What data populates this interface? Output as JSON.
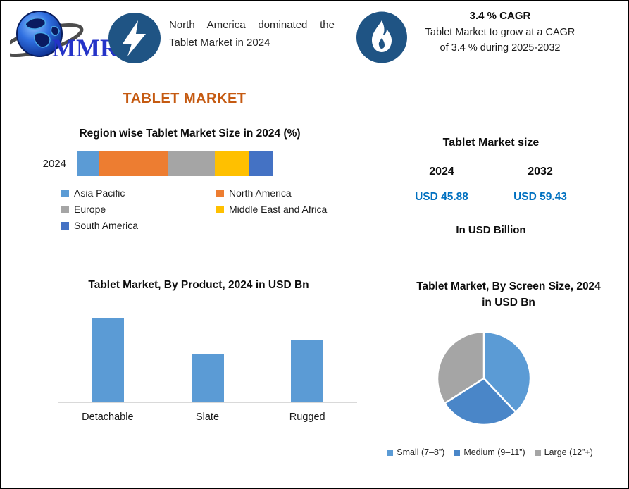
{
  "header": {
    "logo_text": "MMR",
    "highlight_left": "North America dominated the Tablet Market in 2024",
    "cagr_title": "3.4 % CAGR",
    "cagr_text": "Tablet Market to grow at a CAGR of 3.4 % during 2025-2032"
  },
  "page_title": "TABLET MARKET",
  "market_size_panel": {
    "title": "Tablet Market size",
    "year_left": "2024",
    "year_right": "2032",
    "value_left": "USD 45.88",
    "value_right": "USD 59.43",
    "unit_note": "In USD Billion",
    "value_color": "#0070C0"
  },
  "icon_colors": {
    "badge_blue": "#1F5484",
    "logo_text_blue": "#2433C8"
  },
  "chart_data": [
    {
      "id": "region_share",
      "type": "bar",
      "subtype": "horizontal-stacked",
      "title": "Region wise Tablet Market Size in 2024 (%)",
      "categories": [
        "2024"
      ],
      "series": [
        {
          "name": "Asia Pacific",
          "values": [
            11.5
          ],
          "color": "#5B9BD5"
        },
        {
          "name": "North America",
          "values": [
            35
          ],
          "color": "#ED7D31"
        },
        {
          "name": "Europe",
          "values": [
            24
          ],
          "color": "#A5A5A5"
        },
        {
          "name": "Middle East and Africa",
          "values": [
            17.5
          ],
          "color": "#FFC000"
        },
        {
          "name": "South America",
          "values": [
            12
          ],
          "color": "#4472C4"
        }
      ],
      "xlim": [
        0,
        100
      ],
      "grid": false,
      "legend_position": "bottom"
    },
    {
      "id": "by_product",
      "type": "bar",
      "title": "Tablet Market, By Product, 2024 in USD Bn",
      "categories": [
        "Detachable",
        "Slate",
        "Rugged"
      ],
      "values": [
        19.8,
        11.5,
        14.6
      ],
      "ylim": [
        0,
        20
      ],
      "bar_color": "#5B9BD5",
      "grid": false,
      "legend_position": "none"
    },
    {
      "id": "by_screen_size",
      "type": "pie",
      "title": "Tablet Market, By Screen Size, 2024 in USD Bn",
      "labels": [
        "Small (7–8”)",
        "Medium (9–11”)",
        "Large (12”+)"
      ],
      "values": [
        38,
        28,
        34
      ],
      "colors": [
        "#5B9BD5",
        "#4A86C8",
        "#A5A5A5"
      ],
      "start_angle_deg": 0,
      "direction": "clockwise",
      "legend_position": "bottom"
    }
  ]
}
